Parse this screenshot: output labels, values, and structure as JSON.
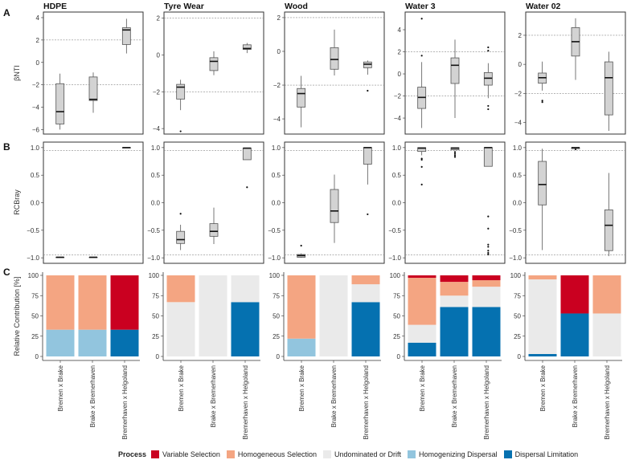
{
  "chart_data": {
    "type": "boxplot-and-stacked-bar",
    "row_labels": [
      "A",
      "B",
      "C"
    ],
    "row_a_ylabel": "βNTI",
    "row_b_ylabel": "RCBray",
    "row_c_ylabel": "Relative Contribution [%]",
    "categories": [
      "Bremen x Brake",
      "Brake x Bremerhaven",
      "Bremerhaven x Helgoland"
    ],
    "row_a_thresholds": [
      -2,
      2
    ],
    "row_b_thresholds": [
      -0.95,
      0.95
    ],
    "row_b_ylim": [
      -1.1,
      1.1
    ],
    "row_b_ticks": [
      1.0,
      0.5,
      0.0,
      -0.5,
      -1.0
    ],
    "row_b_tick_labels": [
      "1.0",
      "0.5",
      "0.0",
      "−0.5",
      "−1.0"
    ],
    "row_c_ticks": [
      100,
      75,
      50,
      25,
      0
    ],
    "row_c_tick_labels": [
      "100",
      "75",
      "50",
      "25",
      "0"
    ],
    "box_format": "[lower_whisker, q1, median, q3, upper_whisker, outliers]",
    "process_order": [
      "Dispersal Limitation",
      "Homogenizing Dispersal",
      "Undominated or Drift",
      "Homogeneous Selection",
      "Variable Selection"
    ],
    "process_colors": {
      "Variable Selection": "#CA0020",
      "Homogeneous Selection": "#F4A582",
      "Undominated or Drift": "#EAEAEA",
      "Homogenizing Dispersal": "#92C5DE",
      "Dispersal Limitation": "#0571B0"
    },
    "panels": [
      {
        "title": "HDPE",
        "a_ylim": [
          -6.4,
          4.5
        ],
        "a_ticks": [
          4,
          2,
          0,
          -2,
          -4,
          -6
        ],
        "a_tick_labels": [
          "4",
          "2",
          "0",
          "−2",
          "−4",
          "−6"
        ],
        "a_boxes": [
          [
            -6.0,
            -5.5,
            -4.4,
            -1.9,
            -1.0,
            []
          ],
          [
            -4.5,
            -3.4,
            -3.3,
            -1.3,
            -0.9,
            []
          ],
          [
            0.8,
            1.6,
            2.9,
            3.1,
            3.9,
            []
          ]
        ],
        "b_boxes": [
          [
            -0.99,
            -0.99,
            -0.99,
            -0.99,
            -0.99,
            []
          ],
          [
            -0.99,
            -0.99,
            -0.99,
            -0.99,
            -0.99,
            []
          ],
          [
            1.0,
            1.0,
            1.0,
            1.0,
            1.0,
            []
          ]
        ],
        "c_bars": [
          {
            "Homogenizing Dispersal": 33,
            "Homogeneous Selection": 67
          },
          {
            "Homogenizing Dispersal": 33,
            "Homogeneous Selection": 67
          },
          {
            "Dispersal Limitation": 33,
            "Variable Selection": 67
          }
        ]
      },
      {
        "title": "Tyre Wear",
        "a_ylim": [
          -4.3,
          2.33
        ],
        "a_ticks": [
          2,
          0,
          -2,
          -4
        ],
        "a_tick_labels": [
          "2",
          "0",
          "−2",
          "−4"
        ],
        "a_boxes": [
          [
            -3.0,
            -2.4,
            -1.75,
            -1.6,
            -1.35,
            [
              -4.15
            ]
          ],
          [
            -1.1,
            -0.85,
            -0.35,
            -0.15,
            0.2,
            []
          ],
          [
            0.1,
            0.3,
            0.35,
            0.55,
            0.65,
            []
          ]
        ],
        "b_boxes": [
          [
            -0.86,
            -0.74,
            -0.67,
            -0.52,
            -0.4,
            [
              -0.2
            ]
          ],
          [
            -0.75,
            -0.61,
            -0.52,
            -0.38,
            -0.09,
            []
          ],
          [
            0.78,
            0.78,
            0.99,
            0.99,
            0.99,
            [
              0.28
            ]
          ]
        ],
        "c_bars": [
          {
            "Undominated or Drift": 67,
            "Homogeneous Selection": 33
          },
          {
            "Undominated or Drift": 100
          },
          {
            "Dispersal Limitation": 67,
            "Undominated or Drift": 33
          }
        ]
      },
      {
        "title": "Wood",
        "a_ylim": [
          -4.9,
          2.33
        ],
        "a_ticks": [
          2,
          0,
          -2,
          -4
        ],
        "a_tick_labels": [
          "2",
          "0",
          "−2",
          "−4"
        ],
        "a_boxes": [
          [
            -4.5,
            -3.3,
            -2.5,
            -2.2,
            -1.45,
            []
          ],
          [
            -1.43,
            -1.06,
            -0.48,
            0.22,
            1.29,
            []
          ],
          [
            -1.38,
            -0.97,
            -0.76,
            -0.63,
            -0.54,
            [
              -2.33
            ]
          ]
        ],
        "b_boxes": [
          [
            -1.0,
            -0.99,
            -0.96,
            -0.94,
            -0.92,
            [
              -0.78
            ]
          ],
          [
            -0.73,
            -0.36,
            -0.15,
            0.24,
            0.51,
            []
          ],
          [
            0.33,
            0.7,
            1.0,
            1.0,
            1.0,
            [
              -0.21
            ]
          ]
        ],
        "c_bars": [
          {
            "Homogenizing Dispersal": 22,
            "Homogeneous Selection": 78
          },
          {
            "Undominated or Drift": 100
          },
          {
            "Dispersal Limitation": 67,
            "Undominated or Drift": 22,
            "Homogeneous Selection": 11
          }
        ]
      },
      {
        "title": "Water 3",
        "a_ylim": [
          -5.45,
          5.6
        ],
        "a_ticks": [
          4,
          2,
          0,
          -2,
          -4
        ],
        "a_tick_labels": [
          "4",
          "2",
          "0",
          "−2",
          "−4"
        ],
        "a_boxes": [
          [
            -4.9,
            -3.13,
            -2.13,
            -1.2,
            1.07,
            [
              5.0,
              1.65
            ]
          ],
          [
            -4.0,
            -0.87,
            0.78,
            1.45,
            3.1,
            []
          ],
          [
            -2.2,
            -1.02,
            -0.39,
            0.12,
            0.97,
            [
              2.4,
              2.1,
              -2.9,
              -3.2
            ]
          ]
        ],
        "b_boxes": [
          [
            0.86,
            0.93,
            0.99,
            1.0,
            1.0,
            [
              0.8,
              0.78,
              0.65,
              0.33
            ]
          ],
          [
            0.95,
            0.96,
            0.99,
            1.0,
            1.0,
            [
              0.92,
              0.89,
              0.86,
              0.83
            ]
          ],
          [
            0.66,
            0.66,
            1.0,
            1.0,
            1.0,
            [
              -0.25,
              -0.47,
              -0.76,
              -0.8,
              -0.87,
              -0.91,
              -0.94
            ]
          ]
        ],
        "c_bars": [
          {
            "Dispersal Limitation": 17,
            "Undominated or Drift": 22,
            "Homogeneous Selection": 58,
            "Variable Selection": 3
          },
          {
            "Dispersal Limitation": 61,
            "Undominated or Drift": 14,
            "Homogeneous Selection": 17,
            "Variable Selection": 8
          },
          {
            "Dispersal Limitation": 61,
            "Undominated or Drift": 25,
            "Homogeneous Selection": 8,
            "Variable Selection": 6
          }
        ]
      },
      {
        "title": "Water 02",
        "a_ylim": [
          -4.8,
          3.6
        ],
        "a_ticks": [
          2,
          0,
          -2,
          -4
        ],
        "a_tick_labels": [
          "2",
          "0",
          "−2",
          "−4"
        ],
        "a_boxes": [
          [
            -1.81,
            -1.3,
            -0.92,
            -0.6,
            0.19,
            [
              -2.5,
              -2.6
            ]
          ],
          [
            -1.07,
            0.57,
            1.56,
            2.53,
            3.17,
            []
          ],
          [
            -4.58,
            -3.48,
            -0.92,
            0.17,
            0.87,
            []
          ]
        ],
        "b_boxes": [
          [
            -0.86,
            -0.04,
            0.33,
            0.75,
            0.98,
            []
          ],
          [
            0.98,
            0.98,
            1.0,
            1.0,
            1.0,
            [
              0.97
            ]
          ],
          [
            -0.97,
            -0.87,
            -0.41,
            -0.13,
            0.54,
            []
          ]
        ],
        "c_bars": [
          {
            "Dispersal Limitation": 3,
            "Undominated or Drift": 92,
            "Homogeneous Selection": 5
          },
          {
            "Dispersal Limitation": 53,
            "Variable Selection": 47
          },
          {
            "Undominated or Drift": 53,
            "Homogeneous Selection": 47
          }
        ]
      }
    ]
  },
  "legend": {
    "title": "Process",
    "items": [
      "Variable Selection",
      "Homogeneous Selection",
      "Undominated or Drift",
      "Homogenizing Dispersal",
      "Dispersal Limitation"
    ]
  }
}
